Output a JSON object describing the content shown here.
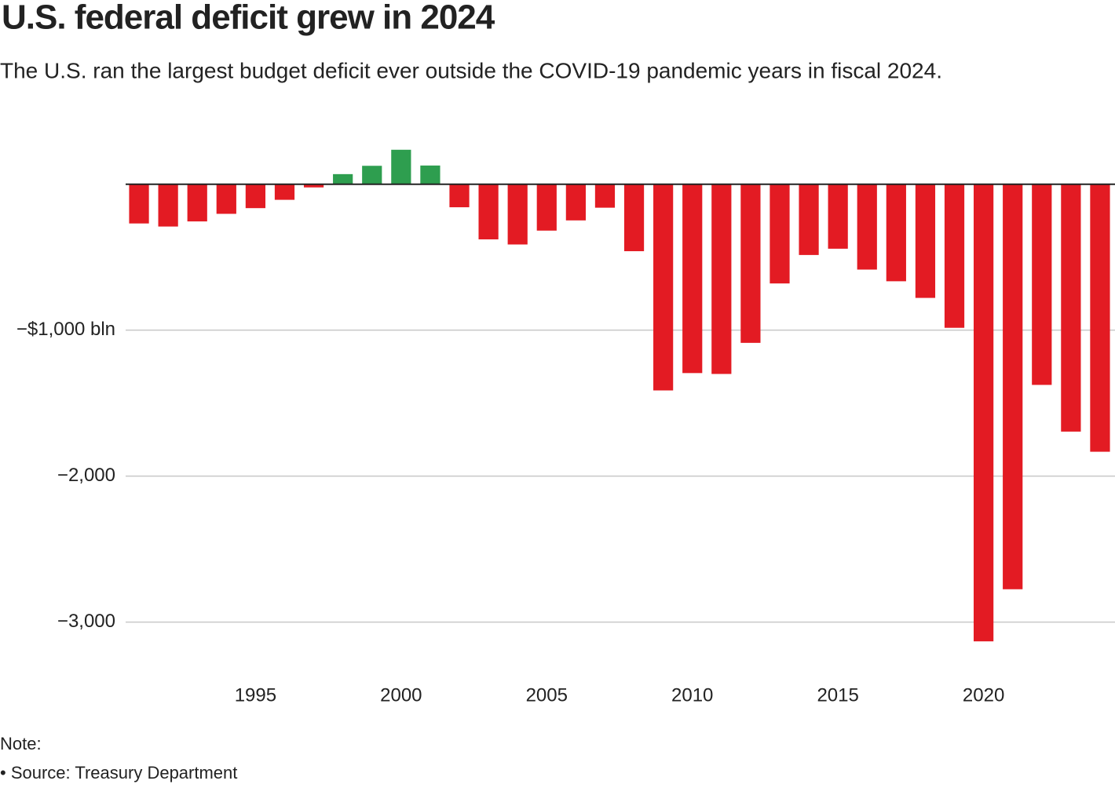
{
  "chart_data": {
    "type": "bar",
    "title": "U.S. federal deficit grew in 2024",
    "subtitle": "The U.S. ran the largest budget deficit ever outside the COVID-19 pandemic years in fiscal 2024.",
    "x": [
      1991,
      1992,
      1993,
      1994,
      1995,
      1996,
      1997,
      1998,
      1999,
      2000,
      2001,
      2002,
      2003,
      2004,
      2005,
      2006,
      2007,
      2008,
      2009,
      2010,
      2011,
      2012,
      2013,
      2014,
      2015,
      2016,
      2017,
      2018,
      2019,
      2020,
      2021,
      2022,
      2023,
      2024
    ],
    "values": [
      -269,
      -290,
      -255,
      -203,
      -164,
      -107,
      -22,
      69,
      126,
      236,
      128,
      -158,
      -378,
      -413,
      -318,
      -248,
      -161,
      -459,
      -1413,
      -1294,
      -1300,
      -1087,
      -680,
      -485,
      -442,
      -585,
      -665,
      -779,
      -984,
      -3132,
      -2775,
      -1375,
      -1695,
      -1833
    ],
    "positive_color": "#2e9e4f",
    "negative_color": "#e31b23",
    "xlim": [
      1990.5,
      2024.5
    ],
    "xticks": [
      1995,
      2000,
      2005,
      2010,
      2015,
      2020
    ],
    "ylim": [
      -3400,
      450
    ],
    "yticks": [
      {
        "value": -1000,
        "label": "−$1,000 bln"
      },
      {
        "value": -2000,
        "label": "−2,000"
      },
      {
        "value": -3000,
        "label": "−3,000"
      }
    ],
    "grid": true,
    "note": "Note:",
    "source": "• Source: Treasury Department"
  }
}
